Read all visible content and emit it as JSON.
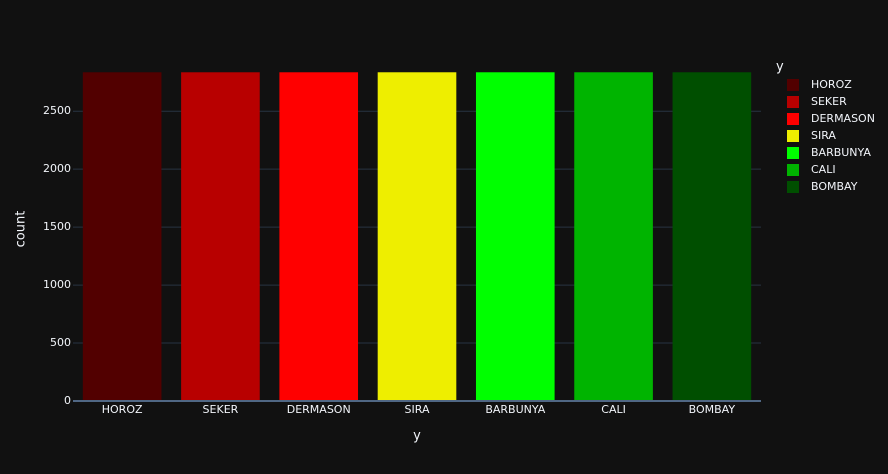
{
  "chart_data": {
    "type": "bar",
    "x_label": "y",
    "y_label": "count",
    "legend_title": "y",
    "categories": [
      "HOROZ",
      "SEKER",
      "DERMASON",
      "SIRA",
      "BARBUNYA",
      "CALI",
      "BOMBAY"
    ],
    "values": [
      2836,
      2836,
      2836,
      2836,
      2836,
      2836,
      2836
    ],
    "colors": [
      "#520000",
      "#b80000",
      "#ff0000",
      "#eeee00",
      "#00ff00",
      "#00b400",
      "#004f00"
    ],
    "ylim": [
      0,
      2985
    ],
    "yticks": [
      0,
      500,
      1000,
      1500,
      2000,
      2500
    ],
    "grid": true
  }
}
